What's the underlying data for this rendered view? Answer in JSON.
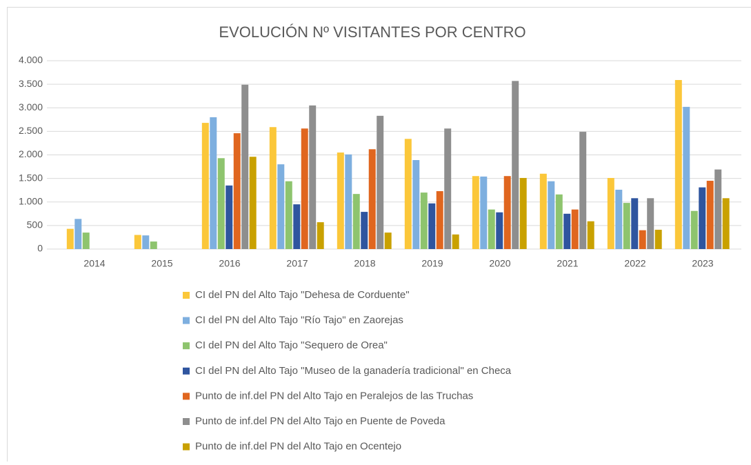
{
  "chart_data": {
    "type": "bar",
    "title": "EVOLUCIÓN Nº VISITANTES POR CENTRO",
    "categories": [
      "2014",
      "2015",
      "2016",
      "2017",
      "2018",
      "2019",
      "2020",
      "2021",
      "2022",
      "2023"
    ],
    "series": [
      {
        "name": "CI del PN del Alto Tajo \"Dehesa de Corduente\"",
        "color": "#fbc73a",
        "values": [
          430,
          300,
          2680,
          2590,
          2050,
          2340,
          1550,
          1600,
          1510,
          3590
        ]
      },
      {
        "name": "CI del PN del Alto Tajo \"Río Tajo\" en Zaorejas",
        "color": "#7eafdf",
        "values": [
          640,
          290,
          2800,
          1800,
          2010,
          1890,
          1540,
          1440,
          1260,
          3020
        ]
      },
      {
        "name": "CI del PN del Alto Tajo \"Sequero de Orea\"",
        "color": "#8ec46e",
        "values": [
          350,
          160,
          1930,
          1440,
          1170,
          1200,
          840,
          1160,
          980,
          810
        ]
      },
      {
        "name": "CI del PN del Alto Tajo \"Museo de la ganadería tradicional\" en Checa",
        "color": "#2f559f",
        "values": [
          null,
          null,
          1350,
          950,
          790,
          970,
          780,
          750,
          1080,
          1310
        ]
      },
      {
        "name": "Punto de inf.del PN del Alto Tajo en Peralejos de las Truchas",
        "color": "#e0661f",
        "values": [
          null,
          null,
          2460,
          2560,
          2120,
          1230,
          1550,
          840,
          400,
          1450
        ]
      },
      {
        "name": "Punto de inf.del PN del Alto Tajo en Puente de Poveda",
        "color": "#8e8e8e",
        "values": [
          null,
          null,
          3490,
          3050,
          2830,
          2560,
          3570,
          2490,
          1080,
          1690
        ]
      },
      {
        "name": "Punto de inf.del PN del Alto Tajo en Ocentejo",
        "color": "#c9a100",
        "values": [
          null,
          null,
          1960,
          570,
          350,
          310,
          1510,
          590,
          410,
          1080
        ]
      }
    ],
    "ylim": [
      0,
      4000
    ],
    "yticks": [
      0,
      500,
      {
        "value": 1000,
        "label": "1.000"
      },
      {
        "value": 1500,
        "label": "1.500"
      },
      {
        "value": 2000,
        "label": "2.000"
      },
      {
        "value": 2500,
        "label": "2.500"
      },
      {
        "value": 3000,
        "label": "3.000"
      },
      {
        "value": 3500,
        "label": "3.500"
      },
      {
        "value": 4000,
        "label": "4.000"
      }
    ],
    "grid": true
  }
}
